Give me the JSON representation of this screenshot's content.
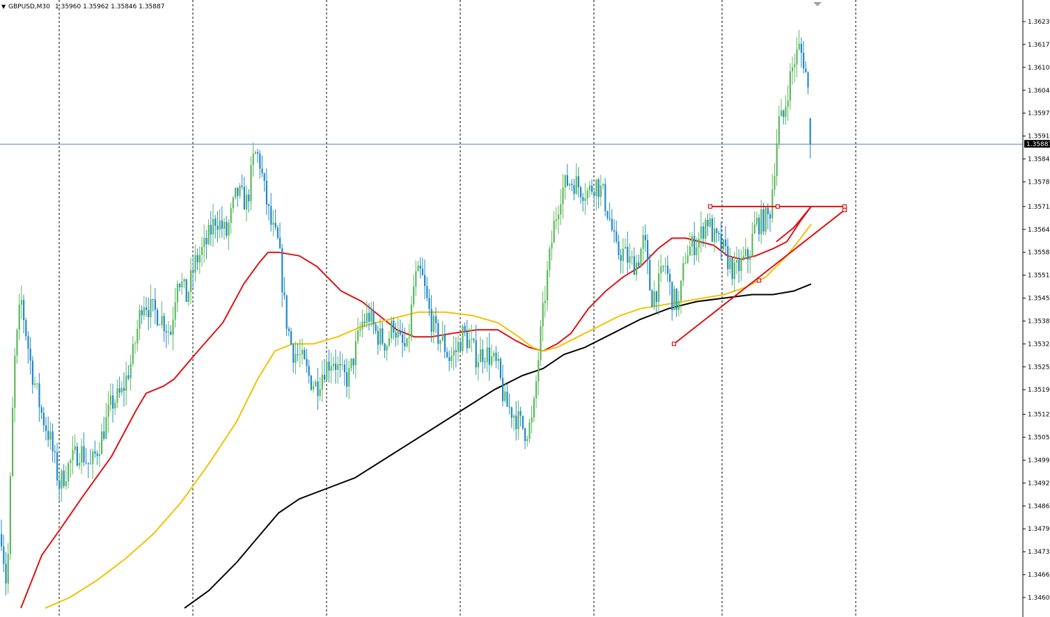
{
  "header": {
    "arrow": "▼",
    "symbol": "GBPUSD,M30",
    "ohlc": "1.35960 1.35962 1.35846 1.35887"
  },
  "colors": {
    "background": "#ffffff",
    "candle_up": "#5cb85c",
    "candle_down": "#1e88c8",
    "ma_fast": "#e01010",
    "ma_mid": "#f2c200",
    "ma_slow": "#000000",
    "drawing": "#e01010",
    "current_price_line": "#4a86b8",
    "price_tag_bg": "#000000",
    "grid_vertical": "#000000"
  },
  "current_price": {
    "label": "1.35887",
    "value": 1.35887
  },
  "chart_data": {
    "type": "candlestick",
    "symbol": "GBPUSD",
    "timeframe": "M30",
    "title": "GBPUSD,M30",
    "ohlc_last": {
      "open": 1.3596,
      "high": 1.35962,
      "low": 1.35846,
      "close": 1.35887
    },
    "y_axis": {
      "position": "right",
      "ticks": [
        "1.36235",
        "1.36170",
        "1.36105",
        "1.36040",
        "1.35975",
        "1.35910",
        "1.35845",
        "1.35780",
        "1.35710",
        "1.35645",
        "1.35580",
        "1.35515",
        "1.35450",
        "1.35385",
        "1.35320",
        "1.35255",
        "1.35190",
        "1.35120",
        "1.35055",
        "1.34990",
        "1.34925",
        "1.34860",
        "1.34795",
        "1.34730",
        "1.34665",
        "1.34600"
      ],
      "range": [
        1.3457,
        1.3627
      ]
    },
    "x_axis": {
      "grid": "vertical dashed separators",
      "labels_visible": false
    },
    "grid": "vertical-dashed",
    "candle_points": [
      [
        0,
        1.3482
      ],
      [
        10,
        1.3462
      ],
      [
        20,
        1.3525
      ],
      [
        30,
        1.3545
      ],
      [
        45,
        1.3525
      ],
      [
        60,
        1.3512
      ],
      [
        72,
        1.3505
      ],
      [
        85,
        1.3492
      ],
      [
        100,
        1.3498
      ],
      [
        115,
        1.3502
      ],
      [
        130,
        1.3497
      ],
      [
        145,
        1.3505
      ],
      [
        160,
        1.3515
      ],
      [
        175,
        1.3518
      ],
      [
        190,
        1.3528
      ],
      [
        205,
        1.3545
      ],
      [
        215,
        1.3542
      ],
      [
        230,
        1.354
      ],
      [
        245,
        1.3535
      ],
      [
        255,
        1.3552
      ],
      [
        268,
        1.3545
      ],
      [
        280,
        1.3555
      ],
      [
        295,
        1.356
      ],
      [
        310,
        1.3568
      ],
      [
        325,
        1.3563
      ],
      [
        340,
        1.3575
      ],
      [
        355,
        1.3572
      ],
      [
        365,
        1.3586
      ],
      [
        372,
        1.3585
      ],
      [
        380,
        1.3575
      ],
      [
        390,
        1.3565
      ],
      [
        400,
        1.356
      ],
      [
        410,
        1.354
      ],
      [
        420,
        1.353
      ],
      [
        432,
        1.3528
      ],
      [
        445,
        1.3522
      ],
      [
        455,
        1.352
      ],
      [
        465,
        1.3525
      ],
      [
        478,
        1.3528
      ],
      [
        490,
        1.3523
      ],
      [
        500,
        1.3522
      ],
      [
        510,
        1.353
      ],
      [
        520,
        1.3538
      ],
      [
        530,
        1.354
      ],
      [
        540,
        1.3535
      ],
      [
        555,
        1.3532
      ],
      [
        565,
        1.3538
      ],
      [
        575,
        1.3532
      ],
      [
        585,
        1.353
      ],
      [
        595,
        1.355
      ],
      [
        605,
        1.3552
      ],
      [
        615,
        1.3542
      ],
      [
        625,
        1.3535
      ],
      [
        635,
        1.3533
      ],
      [
        645,
        1.3528
      ],
      [
        655,
        1.353
      ],
      [
        665,
        1.3535
      ],
      [
        675,
        1.3532
      ],
      [
        685,
        1.3528
      ],
      [
        695,
        1.353
      ],
      [
        705,
        1.3528
      ],
      [
        715,
        1.3525
      ],
      [
        725,
        1.3515
      ],
      [
        735,
        1.3513
      ],
      [
        745,
        1.351
      ],
      [
        755,
        1.3507
      ],
      [
        765,
        1.351
      ],
      [
        775,
        1.3532
      ],
      [
        785,
        1.355
      ],
      [
        795,
        1.3565
      ],
      [
        805,
        1.3575
      ],
      [
        815,
        1.3578
      ],
      [
        825,
        1.3578
      ],
      [
        835,
        1.3576
      ],
      [
        845,
        1.3575
      ],
      [
        855,
        1.3578
      ],
      [
        865,
        1.3575
      ],
      [
        875,
        1.3568
      ],
      [
        885,
        1.3558
      ],
      [
        895,
        1.3558
      ],
      [
        905,
        1.3555
      ],
      [
        915,
        1.3555
      ],
      [
        925,
        1.3562
      ],
      [
        935,
        1.3545
      ],
      [
        945,
        1.3548
      ],
      [
        955,
        1.3555
      ],
      [
        965,
        1.3545
      ],
      [
        975,
        1.3543
      ],
      [
        985,
        1.3558
      ],
      [
        995,
        1.356
      ],
      [
        1005,
        1.3562
      ],
      [
        1015,
        1.3568
      ],
      [
        1025,
        1.3562
      ],
      [
        1035,
        1.356
      ],
      [
        1045,
        1.3556
      ],
      [
        1055,
        1.3552
      ],
      [
        1065,
        1.3555
      ],
      [
        1075,
        1.3557
      ],
      [
        1085,
        1.3566
      ],
      [
        1095,
        1.3567
      ],
      [
        1105,
        1.3568
      ],
      [
        1112,
        1.3582
      ],
      [
        1118,
        1.3595
      ],
      [
        1125,
        1.3596
      ],
      [
        1132,
        1.3605
      ],
      [
        1140,
        1.3612
      ],
      [
        1148,
        1.3616
      ],
      [
        1155,
        1.3612
      ],
      [
        1160,
        1.3605
      ],
      [
        1165,
        1.3589
      ]
    ],
    "series": [
      {
        "name": "",
        "color": "#e01010",
        "values": [
          [
            30,
            1.3457
          ],
          [
            60,
            1.3472
          ],
          [
            85,
            1.3479
          ],
          [
            120,
            1.3489
          ],
          [
            160,
            1.35
          ],
          [
            195,
            1.3513
          ],
          [
            210,
            1.3518
          ],
          [
            235,
            1.352
          ],
          [
            250,
            1.3522
          ],
          [
            280,
            1.3529
          ],
          [
            320,
            1.3538
          ],
          [
            350,
            1.3549
          ],
          [
            372,
            1.3555
          ],
          [
            385,
            1.3558
          ],
          [
            400,
            1.3558
          ],
          [
            430,
            1.3557
          ],
          [
            455,
            1.3554
          ],
          [
            490,
            1.3547
          ],
          [
            520,
            1.3544
          ],
          [
            545,
            1.354
          ],
          [
            570,
            1.3536
          ],
          [
            595,
            1.3534
          ],
          [
            620,
            1.3534
          ],
          [
            650,
            1.3535
          ],
          [
            685,
            1.3536
          ],
          [
            715,
            1.3536
          ],
          [
            740,
            1.3533
          ],
          [
            760,
            1.3531
          ],
          [
            780,
            1.353
          ],
          [
            800,
            1.3532
          ],
          [
            820,
            1.3535
          ],
          [
            845,
            1.3542
          ],
          [
            870,
            1.3547
          ],
          [
            895,
            1.3551
          ],
          [
            920,
            1.3554
          ],
          [
            945,
            1.3559
          ],
          [
            965,
            1.3562
          ],
          [
            985,
            1.3562
          ],
          [
            1005,
            1.3561
          ],
          [
            1025,
            1.356
          ],
          [
            1045,
            1.3557
          ],
          [
            1065,
            1.3556
          ],
          [
            1085,
            1.3557
          ],
          [
            1110,
            1.3559
          ],
          [
            1130,
            1.3561
          ],
          [
            1150,
            1.3567
          ],
          [
            1165,
            1.3571
          ]
        ]
      },
      {
        "name": "",
        "color": "#f2c200",
        "values": [
          [
            65,
            1.3457
          ],
          [
            100,
            1.346
          ],
          [
            140,
            1.3465
          ],
          [
            180,
            1.3471
          ],
          [
            220,
            1.3478
          ],
          [
            260,
            1.3487
          ],
          [
            300,
            1.3498
          ],
          [
            340,
            1.351
          ],
          [
            370,
            1.3522
          ],
          [
            395,
            1.353
          ],
          [
            420,
            1.3532
          ],
          [
            450,
            1.3532
          ],
          [
            485,
            1.3534
          ],
          [
            520,
            1.3537
          ],
          [
            560,
            1.3539
          ],
          [
            600,
            1.3541
          ],
          [
            640,
            1.3541
          ],
          [
            680,
            1.354
          ],
          [
            715,
            1.3538
          ],
          [
            745,
            1.3534
          ],
          [
            765,
            1.3531
          ],
          [
            780,
            1.353
          ],
          [
            800,
            1.3531
          ],
          [
            830,
            1.3534
          ],
          [
            860,
            1.3537
          ],
          [
            890,
            1.354
          ],
          [
            920,
            1.3542
          ],
          [
            950,
            1.3543
          ],
          [
            980,
            1.3544
          ],
          [
            1010,
            1.3545
          ],
          [
            1040,
            1.3546
          ],
          [
            1070,
            1.3548
          ],
          [
            1100,
            1.3551
          ],
          [
            1130,
            1.3557
          ],
          [
            1150,
            1.3562
          ],
          [
            1165,
            1.3566
          ]
        ]
      },
      {
        "name": "",
        "color": "#000000",
        "values": [
          [
            265,
            1.3457
          ],
          [
            300,
            1.3462
          ],
          [
            340,
            1.347
          ],
          [
            370,
            1.3477
          ],
          [
            400,
            1.3484
          ],
          [
            430,
            1.3488
          ],
          [
            470,
            1.3491
          ],
          [
            510,
            1.3494
          ],
          [
            550,
            1.3499
          ],
          [
            590,
            1.3504
          ],
          [
            630,
            1.3509
          ],
          [
            670,
            1.3514
          ],
          [
            710,
            1.3519
          ],
          [
            750,
            1.3523
          ],
          [
            780,
            1.3525
          ],
          [
            810,
            1.3529
          ],
          [
            840,
            1.3531
          ],
          [
            880,
            1.3535
          ],
          [
            920,
            1.3539
          ],
          [
            960,
            1.3542
          ],
          [
            1000,
            1.3544
          ],
          [
            1040,
            1.3545
          ],
          [
            1080,
            1.3546
          ],
          [
            1110,
            1.3546
          ],
          [
            1140,
            1.3547
          ],
          [
            1165,
            1.3549
          ]
        ]
      }
    ],
    "drawings": {
      "horizontal_line": {
        "x": [
          1020,
          1213
        ],
        "value": 1.3571
      },
      "upper_curve": {
        "values": [
          [
            1115,
            1.3561
          ],
          [
            1140,
            1.3565
          ],
          [
            1165,
            1.3571
          ]
        ]
      },
      "trendline": {
        "x": [
          968,
          1213
        ],
        "values": [
          1.3532,
          1.357
        ]
      },
      "markers": [
        [
          1020,
          1.3571
        ],
        [
          1117,
          1.3571
        ],
        [
          1213,
          1.3571
        ],
        [
          1213,
          1.357
        ],
        [
          1090,
          1.355
        ],
        [
          968,
          1.3532
        ]
      ]
    }
  }
}
